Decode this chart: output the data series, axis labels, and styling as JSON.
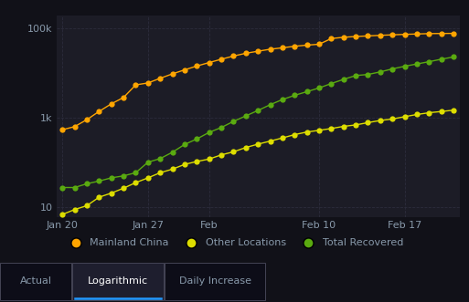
{
  "bg_color": "#111118",
  "plot_bg_color": "#1c1c26",
  "grid_color": "#2e2e3e",
  "text_color": "#8899aa",
  "spine_color": "#333344",
  "mainland_china_color": "#FFA500",
  "other_locations_color": "#DDDD00",
  "total_recovered_color": "#5aaa10",
  "x_tick_labels": [
    "Jan 20",
    "Jan 27",
    "Feb",
    "Feb 10",
    "Feb 17"
  ],
  "x_tick_positions": [
    0,
    7,
    12,
    21,
    28
  ],
  "mainland_china": [
    548,
    643,
    920,
    1406,
    2075,
    2877,
    5509,
    6087,
    7736,
    9720,
    11948,
    14549,
    17387,
    20626,
    24324,
    28018,
    31161,
    34546,
    37198,
    40171,
    42638,
    44653,
    59804,
    63851,
    66492,
    68500,
    70548,
    72436,
    74185,
    75700,
    77150,
    77658,
    78064
  ],
  "other_locations": [
    7,
    9,
    11,
    17,
    21,
    27,
    36,
    46,
    60,
    72,
    92,
    107,
    121,
    150,
    176,
    219,
    261,
    305,
    359,
    426,
    487,
    531,
    583,
    651,
    702,
    791,
    882,
    950,
    1073,
    1200,
    1315,
    1400,
    1500
  ],
  "total_recovered": [
    28,
    28,
    34,
    39,
    46,
    51,
    60,
    103,
    124,
    172,
    257,
    341,
    477,
    614,
    843,
    1115,
    1477,
    1986,
    2591,
    3219,
    3886,
    4701,
    5911,
    7323,
    8915,
    9419,
    10748,
    12552,
    14356,
    16169,
    18177,
    20671,
    23187
  ],
  "ylim_low": 6,
  "ylim_high": 200000,
  "yticks": [
    10,
    1000,
    100000
  ],
  "ytick_labels": [
    "10",
    "1k",
    "100k"
  ],
  "legend_labels": [
    "Mainland China",
    "Other Locations",
    "Total Recovered"
  ],
  "legend_colors": [
    "#FFA500",
    "#DDDD00",
    "#5aaa10"
  ],
  "tab_labels": [
    "Actual",
    "Logarithmic",
    "Daily Increase"
  ],
  "tab_active": 1,
  "tab_active_underline_color": "#2299ff",
  "marker_size": 4.5,
  "line_width": 1.0,
  "font_size_ticks": 8,
  "font_size_legend": 8,
  "font_size_tabs": 8
}
